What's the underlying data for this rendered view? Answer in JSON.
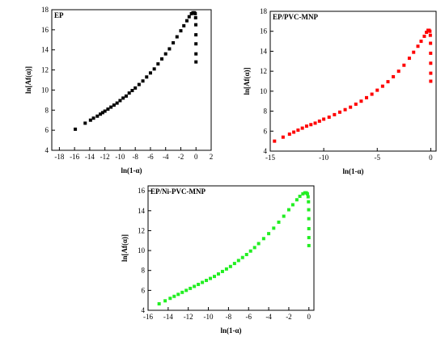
{
  "chart_data": [
    {
      "type": "scatter",
      "title": "EP",
      "xlabel": "ln(1-α)",
      "ylabel": "ln[Af(α)]",
      "xlim": [
        -19,
        2
      ],
      "ylim": [
        4,
        18
      ],
      "xticks": [
        -18,
        -16,
        -14,
        -12,
        -10,
        -8,
        -6,
        -4,
        -2,
        0,
        2
      ],
      "yticks": [
        4,
        6,
        8,
        10,
        12,
        14,
        16,
        18
      ],
      "grid": false,
      "legend": "none",
      "marker_color": "#000000",
      "x": [
        -15.9,
        -14.6,
        -13.9,
        -13.5,
        -13.0,
        -12.6,
        -12.3,
        -12.0,
        -11.6,
        -11.2,
        -10.8,
        -10.4,
        -10.0,
        -9.6,
        -9.2,
        -8.8,
        -8.4,
        -8.0,
        -7.5,
        -7.0,
        -6.5,
        -6.0,
        -5.5,
        -5.0,
        -4.5,
        -4.0,
        -3.5,
        -3.0,
        -2.5,
        -2.0,
        -1.6,
        -1.2,
        -0.9,
        -0.6,
        -0.4,
        -0.2,
        -0.1,
        -0.05,
        -0.02,
        -0.01,
        -0.005,
        -0.002,
        -0.001
      ],
      "y": [
        6.1,
        6.7,
        7.0,
        7.2,
        7.4,
        7.6,
        7.75,
        7.9,
        8.1,
        8.3,
        8.5,
        8.7,
        8.95,
        9.2,
        9.4,
        9.7,
        9.95,
        10.2,
        10.55,
        10.9,
        11.3,
        11.7,
        12.1,
        12.6,
        13.1,
        13.6,
        14.1,
        14.7,
        15.3,
        15.9,
        16.4,
        16.9,
        17.3,
        17.6,
        17.7,
        17.7,
        17.6,
        17.2,
        16.5,
        15.5,
        14.6,
        13.6,
        12.8
      ]
    },
    {
      "type": "scatter",
      "title": "EP/PVC-MNP",
      "xlabel": "ln(1-α)",
      "ylabel": "ln[Af(α)]",
      "xlim": [
        -15,
        0.5
      ],
      "ylim": [
        4,
        18
      ],
      "xticks": [
        -15,
        -10,
        -5,
        0
      ],
      "yticks": [
        4,
        6,
        8,
        10,
        12,
        14,
        16,
        18
      ],
      "grid": false,
      "legend": "none",
      "marker_color": "#ff0000",
      "x": [
        -14.6,
        -13.8,
        -13.2,
        -12.8,
        -12.4,
        -12.0,
        -11.6,
        -11.2,
        -10.8,
        -10.4,
        -10.0,
        -9.5,
        -9.0,
        -8.5,
        -8.0,
        -7.5,
        -7.0,
        -6.5,
        -6.0,
        -5.5,
        -5.0,
        -4.5,
        -4.0,
        -3.5,
        -3.0,
        -2.5,
        -2.0,
        -1.6,
        -1.2,
        -0.9,
        -0.6,
        -0.4,
        -0.25,
        -0.15,
        -0.08,
        -0.04,
        -0.02,
        -0.01,
        -0.005,
        -0.002,
        -0.001
      ],
      "y": [
        5.0,
        5.4,
        5.7,
        5.9,
        6.1,
        6.3,
        6.5,
        6.65,
        6.8,
        7.0,
        7.2,
        7.4,
        7.65,
        7.9,
        8.15,
        8.4,
        8.7,
        9.0,
        9.35,
        9.7,
        10.1,
        10.5,
        10.95,
        11.45,
        12.0,
        12.6,
        13.3,
        13.9,
        14.5,
        15.0,
        15.5,
        15.9,
        16.1,
        16.1,
        16.0,
        15.6,
        14.8,
        13.8,
        12.8,
        11.8,
        11.0
      ]
    },
    {
      "type": "scatter",
      "title": "EP/Ni-PVC-MNP",
      "xlabel": "ln(1-α)",
      "ylabel": "ln[Af(α)]",
      "xlim": [
        -16,
        0.5
      ],
      "ylim": [
        4,
        16.5
      ],
      "xticks": [
        -16,
        -14,
        -12,
        -10,
        -8,
        -6,
        -4,
        -2,
        0
      ],
      "yticks": [
        4,
        6,
        8,
        10,
        12,
        14,
        16
      ],
      "grid": false,
      "legend": "none",
      "marker_color": "#22ee22",
      "x": [
        -14.9,
        -14.3,
        -13.8,
        -13.4,
        -13.0,
        -12.6,
        -12.2,
        -11.8,
        -11.4,
        -11.0,
        -10.6,
        -10.2,
        -9.8,
        -9.4,
        -9.0,
        -8.6,
        -8.2,
        -7.8,
        -7.4,
        -7.0,
        -6.6,
        -6.2,
        -5.8,
        -5.4,
        -5.0,
        -4.5,
        -4.0,
        -3.5,
        -3.0,
        -2.5,
        -2.0,
        -1.6,
        -1.2,
        -0.9,
        -0.6,
        -0.4,
        -0.25,
        -0.15,
        -0.08,
        -0.04,
        -0.02,
        -0.01,
        -0.005,
        -0.002,
        -0.001
      ],
      "y": [
        4.65,
        4.95,
        5.2,
        5.4,
        5.6,
        5.8,
        6.0,
        6.2,
        6.4,
        6.6,
        6.8,
        7.0,
        7.2,
        7.4,
        7.65,
        7.9,
        8.15,
        8.4,
        8.7,
        9.0,
        9.3,
        9.6,
        9.95,
        10.3,
        10.7,
        11.2,
        11.7,
        12.25,
        12.85,
        13.45,
        14.1,
        14.6,
        15.1,
        15.45,
        15.7,
        15.8,
        15.8,
        15.7,
        15.4,
        14.9,
        14.1,
        13.2,
        12.2,
        11.3,
        10.5
      ]
    }
  ]
}
